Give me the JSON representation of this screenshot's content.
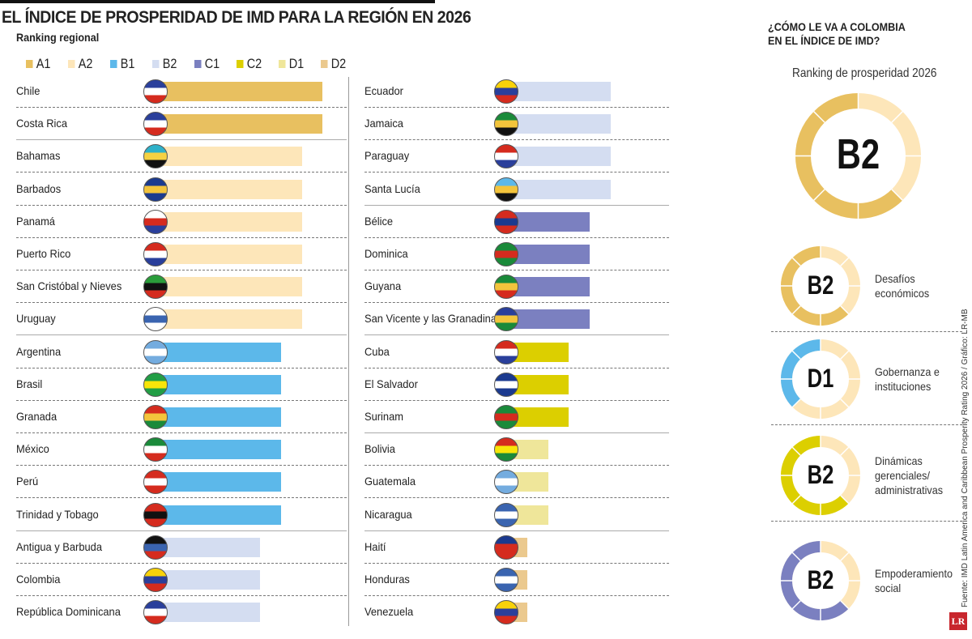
{
  "title": "EL ÍNDICE DE PROSPERIDAD DE IMD PARA LA REGIÓN EN 2026",
  "subtitle": "Ranking regional",
  "chart_data": {
    "type": "bar",
    "grades": [
      "A1",
      "A2",
      "B1",
      "B2",
      "C1",
      "C2",
      "D1",
      "D2"
    ],
    "grade_colors": {
      "A1": "#e8c060",
      "A2": "#fde6b9",
      "B1": "#5cb8ea",
      "B2": "#d4ddf1",
      "C1": "#7b80c0",
      "C2": "#dccf00",
      "D1": "#efe69a",
      "D2": "#ebc98e"
    },
    "left": [
      {
        "country": "Chile",
        "grade": "A1",
        "flag": [
          "#2a3f9b",
          "#fff",
          "#d52b1e"
        ]
      },
      {
        "country": "Costa Rica",
        "grade": "A1",
        "flag": [
          "#2a3f9b",
          "#fff",
          "#d52b1e"
        ]
      },
      {
        "country": "Bahamas",
        "grade": "A2",
        "flag": [
          "#2eb1c9",
          "#f5d142",
          "#111"
        ]
      },
      {
        "country": "Barbados",
        "grade": "A2",
        "flag": [
          "#1b3a8f",
          "#f3c43c",
          "#1b3a8f"
        ]
      },
      {
        "country": "Panamá",
        "grade": "A2",
        "flag": [
          "#fff",
          "#d52b1e",
          "#2a3f9b"
        ]
      },
      {
        "country": "Puerto Rico",
        "grade": "A2",
        "flag": [
          "#d52b1e",
          "#fff",
          "#2a3f9b"
        ]
      },
      {
        "country": "San Cristóbal y Nieves",
        "grade": "A2",
        "flag": [
          "#2a9d3a",
          "#111",
          "#d52b1e"
        ]
      },
      {
        "country": "Uruguay",
        "grade": "A2",
        "flag": [
          "#fff",
          "#3a64b0",
          "#fff"
        ]
      },
      {
        "country": "Argentina",
        "grade": "B1",
        "flag": [
          "#74acdf",
          "#fff",
          "#74acdf"
        ]
      },
      {
        "country": "Brasil",
        "grade": "B1",
        "flag": [
          "#229e45",
          "#f8e509",
          "#229e45"
        ]
      },
      {
        "country": "Granada",
        "grade": "B1",
        "flag": [
          "#d52b1e",
          "#f3c43c",
          "#1a8a3a"
        ]
      },
      {
        "country": "México",
        "grade": "B1",
        "flag": [
          "#1a8a3a",
          "#fff",
          "#d52b1e"
        ]
      },
      {
        "country": "Perú",
        "grade": "B1",
        "flag": [
          "#d52b1e",
          "#fff",
          "#d52b1e"
        ]
      },
      {
        "country": "Trinidad y Tobago",
        "grade": "B1",
        "flag": [
          "#d52b1e",
          "#111",
          "#d52b1e"
        ]
      },
      {
        "country": "Antigua y Barbuda",
        "grade": "B2",
        "flag": [
          "#111",
          "#3a64b0",
          "#d52b1e"
        ]
      },
      {
        "country": "Colombia",
        "grade": "B2",
        "flag": [
          "#f8d20a",
          "#2a3f9b",
          "#d52b1e"
        ]
      },
      {
        "country": "República Dominicana",
        "grade": "B2",
        "flag": [
          "#2a3f9b",
          "#fff",
          "#d52b1e"
        ]
      }
    ],
    "right": [
      {
        "country": "Ecuador",
        "grade": "B2",
        "flag": [
          "#f8d20a",
          "#2a3f9b",
          "#d52b1e"
        ]
      },
      {
        "country": "Jamaica",
        "grade": "B2",
        "flag": [
          "#1a8a3a",
          "#f3c43c",
          "#111"
        ]
      },
      {
        "country": "Paraguay",
        "grade": "B2",
        "flag": [
          "#d52b1e",
          "#fff",
          "#2a3f9b"
        ]
      },
      {
        "country": "Santa Lucía",
        "grade": "B2",
        "flag": [
          "#5cb8ea",
          "#f3c43c",
          "#111"
        ]
      },
      {
        "country": "Bélice",
        "grade": "C1",
        "flag": [
          "#d52b1e",
          "#1b3a8f",
          "#d52b1e"
        ]
      },
      {
        "country": "Dominica",
        "grade": "C1",
        "flag": [
          "#1a8a3a",
          "#d52b1e",
          "#1a8a3a"
        ]
      },
      {
        "country": "Guyana",
        "grade": "C1",
        "flag": [
          "#1a8a3a",
          "#f3c43c",
          "#d52b1e"
        ]
      },
      {
        "country": "San Vicente y las Granadinas",
        "grade": "C1",
        "flag": [
          "#2a3f9b",
          "#f3c43c",
          "#1a8a3a"
        ]
      },
      {
        "country": "Cuba",
        "grade": "C2",
        "flag": [
          "#d52b1e",
          "#fff",
          "#2a3f9b"
        ]
      },
      {
        "country": "El Salvador",
        "grade": "C2",
        "flag": [
          "#1b3a8f",
          "#fff",
          "#1b3a8f"
        ]
      },
      {
        "country": "Surinam",
        "grade": "C2",
        "flag": [
          "#1a8a3a",
          "#d52b1e",
          "#1a8a3a"
        ]
      },
      {
        "country": "Bolivia",
        "grade": "D1",
        "flag": [
          "#d52b1e",
          "#f8e509",
          "#1a8a3a"
        ]
      },
      {
        "country": "Guatemala",
        "grade": "D1",
        "flag": [
          "#74acdf",
          "#fff",
          "#74acdf"
        ]
      },
      {
        "country": "Nicaragua",
        "grade": "D1",
        "flag": [
          "#3a64b0",
          "#fff",
          "#3a64b0"
        ]
      },
      {
        "country": "Haití",
        "grade": "D2",
        "flag": [
          "#1b3a8f",
          "#d52b1e",
          "#d52b1e"
        ]
      },
      {
        "country": "Honduras",
        "grade": "D2",
        "flag": [
          "#3a64b0",
          "#fff",
          "#3a64b0"
        ]
      },
      {
        "country": "Venezuela",
        "grade": "D2",
        "flag": [
          "#f8d20a",
          "#2a3f9b",
          "#d52b1e"
        ]
      }
    ]
  },
  "colombia": {
    "title_line1": "¿CÓMO LE VA A COLOMBIA",
    "title_line2": "EN EL ÍNDICE DE IMD?",
    "overall_label": "Ranking de prosperidad 2026",
    "overall": {
      "grade": "B2",
      "fill_fraction": 0.625,
      "color": "#e8c060"
    },
    "pillars": [
      {
        "grade": "B2",
        "caption": [
          "Desafíos",
          "económicos"
        ],
        "fill_fraction": 0.625,
        "color": "#e8c060"
      },
      {
        "grade": "D1",
        "caption": [
          "Gobernanza e",
          "instituciones"
        ],
        "fill_fraction": 0.375,
        "color": "#5cb8ea"
      },
      {
        "grade": "B2",
        "caption": [
          "Dinámicas",
          "gerenciales/",
          "administrativas"
        ],
        "fill_fraction": 0.625,
        "color": "#dccf00"
      },
      {
        "grade": "B2",
        "caption": [
          "Empoderamiento",
          "social"
        ],
        "fill_fraction": 0.625,
        "color": "#7b80c0"
      }
    ],
    "track_color": "#fde6b9"
  },
  "source": "Fuente: IMD Latin America and Caribbean Prosperity Rating 2026 / Gráfico: LR-MB",
  "logo": "LR"
}
